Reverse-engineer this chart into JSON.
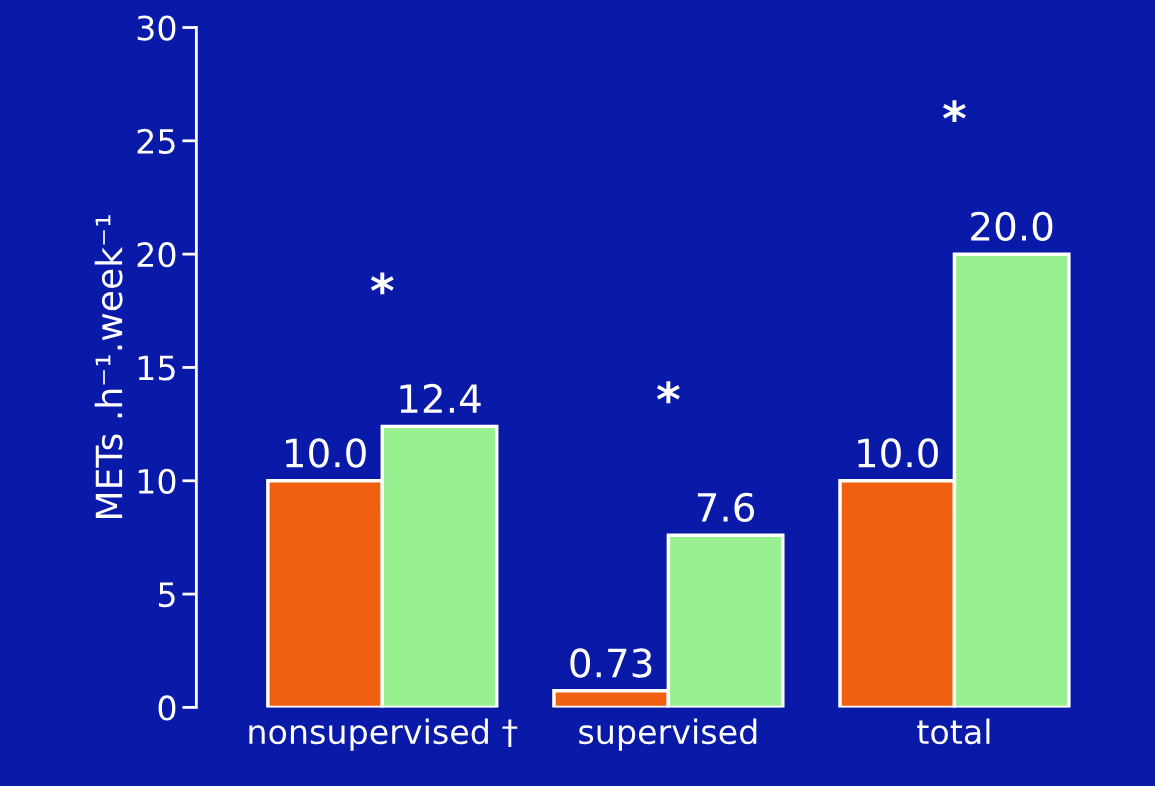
{
  "chart_data": {
    "type": "bar",
    "ylabel": "METs .h⁻¹.week⁻¹",
    "categories": [
      "nonsupervised †",
      "supervised",
      "total"
    ],
    "series": [
      {
        "color": "#f06010",
        "values": [
          10.0,
          0.73,
          10.0
        ],
        "value_labels": [
          "10.0",
          "0.73",
          "10.0"
        ]
      },
      {
        "color": "#98f090",
        "values": [
          12.4,
          7.6,
          20.0
        ],
        "value_labels": [
          "12.4",
          "7.6",
          "20.0"
        ]
      }
    ],
    "ylim": [
      0,
      30
    ],
    "yticks": [
      0,
      5,
      10,
      15,
      20,
      25,
      30
    ],
    "grid": false,
    "legend": false,
    "annotations": [
      "*",
      "*",
      "*"
    ]
  }
}
